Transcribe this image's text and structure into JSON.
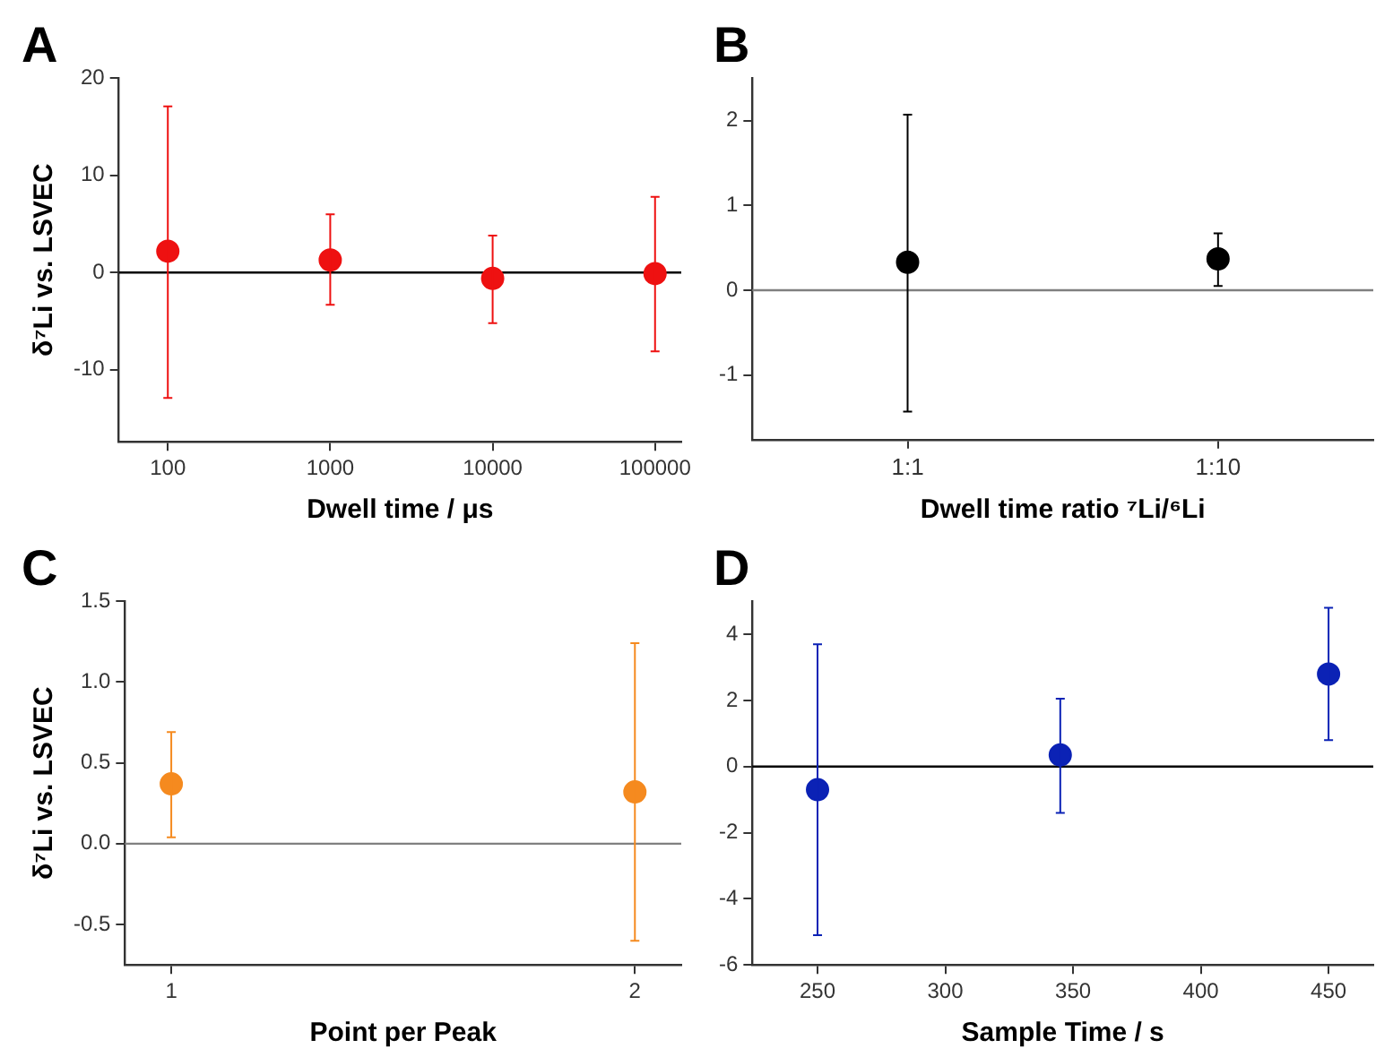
{
  "chart_data": [
    {
      "type": "scatter",
      "title": "A",
      "xlabel": "Dwell time / μs",
      "ylabel": "δ⁷Li vs. LSVEC",
      "log": "x",
      "x": [
        100,
        1000,
        10000,
        100000
      ],
      "xlim": [
        50,
        145000
      ],
      "xticks": [
        100,
        1000,
        10000,
        100000
      ],
      "ylim": [
        -17.4,
        20
      ],
      "yticks": [
        -10,
        0,
        10,
        20
      ],
      "grid": false,
      "legend": false,
      "marker": "circle",
      "series": [
        {
          "color": "#ee1111",
          "values": [
            2.2,
            1.3,
            -0.6,
            -0.1
          ],
          "errors": [
            [
              -12.9,
              17.1
            ],
            [
              -3.3,
              6
            ],
            [
              -5.2,
              3.8
            ],
            [
              -8.1,
              7.8
            ]
          ]
        }
      ],
      "ref_lines": [
        {
          "axis": "y",
          "value": 0,
          "color": "#000000"
        }
      ]
    },
    {
      "type": "scatter",
      "title": "B",
      "xlabel": "Dwell time ratio ⁷Li/⁶Li",
      "categories": [
        "1:1",
        "1:10"
      ],
      "ylim": [
        -1.76,
        2.5
      ],
      "yticks": [
        -1,
        0,
        1,
        2
      ],
      "grid": false,
      "legend": false,
      "marker": "circle",
      "series": [
        {
          "color": "#000000",
          "values": [
            0.33,
            0.37
          ],
          "errors": [
            [
              -1.43,
              2.07
            ],
            [
              0.05,
              0.67
            ]
          ]
        }
      ],
      "ref_lines": [
        {
          "axis": "y",
          "value": 0,
          "color": "#808080"
        }
      ]
    },
    {
      "type": "scatter",
      "title": "C",
      "xlabel": "Point per Peak",
      "ylabel": "δ⁷Li vs. LSVEC",
      "x": [
        1,
        2
      ],
      "xlim": [
        0.9,
        2.1
      ],
      "xticks": [
        1,
        2
      ],
      "ylim": [
        -0.75,
        1.5
      ],
      "yticks": [
        {
          "value": -0.5,
          "label": "-0.5"
        },
        {
          "value": 0,
          "label": "0.0"
        },
        {
          "value": 0.5,
          "label": "0.5"
        },
        {
          "value": 1,
          "label": "1.0"
        },
        {
          "value": 1.5,
          "label": "1.5"
        }
      ],
      "grid": false,
      "legend": false,
      "marker": "circle",
      "series": [
        {
          "color": "#f58a1f",
          "values": [
            0.37,
            0.32
          ],
          "errors": [
            [
              0.04,
              0.69
            ],
            [
              -0.6,
              1.24
            ]
          ]
        }
      ],
      "ref_lines": [
        {
          "axis": "y",
          "value": 0,
          "color": "#808080"
        }
      ]
    },
    {
      "type": "scatter",
      "title": "D",
      "xlabel": "Sample Time / s",
      "x": [
        250,
        345,
        450
      ],
      "xlim": [
        224.5,
        467.5
      ],
      "xticks": [
        250,
        300,
        350,
        400,
        450
      ],
      "ylim": [
        -6,
        5
      ],
      "yticks": [
        -6,
        -4,
        -2,
        0,
        2,
        4
      ],
      "grid": false,
      "legend": false,
      "marker": "circle",
      "series": [
        {
          "color": "#0b22b5",
          "values": [
            -0.7,
            0.35,
            2.8
          ],
          "errors": [
            [
              -5.1,
              3.7
            ],
            [
              -1.4,
              2.05
            ],
            [
              0.8,
              4.8
            ]
          ]
        }
      ],
      "ref_lines": [
        {
          "axis": "y",
          "value": 0,
          "color": "#000000"
        }
      ]
    }
  ]
}
